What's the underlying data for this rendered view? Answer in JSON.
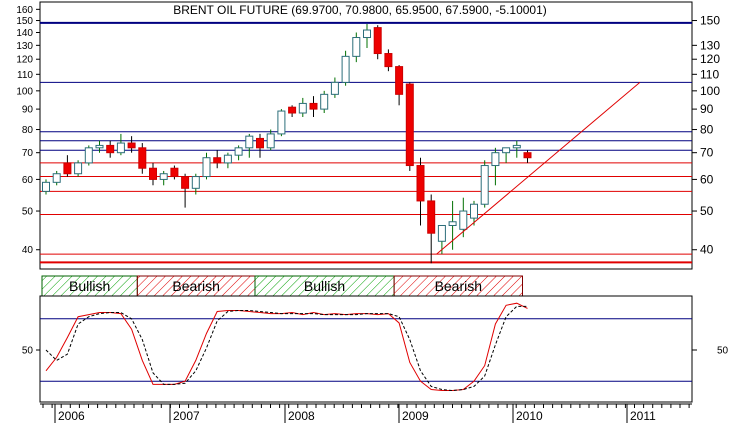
{
  "chart_data": [
    {
      "type": "candlestick",
      "title": "BRENT OIL FUTURE (69.9700, 70.9800, 65.9500, 67.5900, -5.10001)",
      "y_scale": "log",
      "ylim": [
        36,
        165
      ],
      "y_ticks_left": [
        40,
        50,
        60,
        70,
        80,
        90,
        100,
        110,
        120,
        130,
        140,
        150,
        160
      ],
      "y_ticks_right": [
        40,
        50,
        60,
        70,
        80,
        90,
        100,
        110,
        120,
        130,
        150
      ],
      "x_labels": [
        "2006",
        "2007",
        "2008",
        "2009",
        "2010",
        "2011"
      ],
      "candles": [
        {
          "o": 56,
          "h": 60,
          "l": 55,
          "c": 59
        },
        {
          "o": 59,
          "h": 63,
          "l": 58,
          "c": 62
        },
        {
          "o": 66,
          "h": 69,
          "l": 61,
          "c": 62
        },
        {
          "o": 62,
          "h": 67,
          "l": 61,
          "c": 66
        },
        {
          "o": 66,
          "h": 73,
          "l": 65,
          "c": 72
        },
        {
          "o": 72,
          "h": 75,
          "l": 70,
          "c": 73
        },
        {
          "o": 73,
          "h": 75,
          "l": 68,
          "c": 70
        },
        {
          "o": 70,
          "h": 78,
          "l": 69,
          "c": 74
        },
        {
          "o": 74,
          "h": 77,
          "l": 70,
          "c": 72
        },
        {
          "o": 72,
          "h": 74,
          "l": 62,
          "c": 64
        },
        {
          "o": 64,
          "h": 66,
          "l": 58,
          "c": 60
        },
        {
          "o": 60,
          "h": 63,
          "l": 58,
          "c": 62
        },
        {
          "o": 64,
          "h": 65,
          "l": 60,
          "c": 61
        },
        {
          "o": 61,
          "h": 62,
          "l": 51,
          "c": 57
        },
        {
          "o": 57,
          "h": 62,
          "l": 55,
          "c": 61
        },
        {
          "o": 61,
          "h": 70,
          "l": 60,
          "c": 68
        },
        {
          "o": 68,
          "h": 71,
          "l": 64,
          "c": 66
        },
        {
          "o": 66,
          "h": 70,
          "l": 64,
          "c": 69
        },
        {
          "o": 69,
          "h": 73,
          "l": 67,
          "c": 72
        },
        {
          "o": 72,
          "h": 78,
          "l": 68,
          "c": 77
        },
        {
          "o": 76,
          "h": 78,
          "l": 68,
          "c": 72
        },
        {
          "o": 72,
          "h": 80,
          "l": 71,
          "c": 78
        },
        {
          "o": 78,
          "h": 90,
          "l": 77,
          "c": 89
        },
        {
          "o": 91,
          "h": 92,
          "l": 86,
          "c": 88
        },
        {
          "o": 88,
          "h": 96,
          "l": 86,
          "c": 93
        },
        {
          "o": 93,
          "h": 97,
          "l": 86,
          "c": 90
        },
        {
          "o": 90,
          "h": 100,
          "l": 88,
          "c": 98
        },
        {
          "o": 98,
          "h": 108,
          "l": 96,
          "c": 105
        },
        {
          "o": 105,
          "h": 126,
          "l": 103,
          "c": 122
        },
        {
          "o": 122,
          "h": 140,
          "l": 118,
          "c": 136
        },
        {
          "o": 136,
          "h": 147,
          "l": 128,
          "c": 142
        },
        {
          "o": 144,
          "h": 146,
          "l": 120,
          "c": 124
        },
        {
          "o": 124,
          "h": 127,
          "l": 112,
          "c": 115
        },
        {
          "o": 115,
          "h": 116,
          "l": 92,
          "c": 98
        },
        {
          "o": 104,
          "h": 105,
          "l": 63,
          "c": 65
        },
        {
          "o": 65,
          "h": 68,
          "l": 46,
          "c": 53
        },
        {
          "o": 53,
          "h": 55,
          "l": 37,
          "c": 44
        },
        {
          "o": 42,
          "h": 46,
          "l": 39,
          "c": 46
        },
        {
          "o": 46,
          "h": 53,
          "l": 40,
          "c": 47
        },
        {
          "o": 45,
          "h": 54,
          "l": 43,
          "c": 50
        },
        {
          "o": 48,
          "h": 53,
          "l": 46,
          "c": 52
        },
        {
          "o": 52,
          "h": 67,
          "l": 51,
          "c": 65
        },
        {
          "o": 65,
          "h": 72,
          "l": 58,
          "c": 70
        },
        {
          "o": 70,
          "h": 72,
          "l": 66,
          "c": 72
        },
        {
          "o": 72,
          "h": 75,
          "l": 68,
          "c": 73
        },
        {
          "o": 70,
          "h": 71,
          "l": 66,
          "c": 68
        }
      ],
      "horizontal_levels": [
        {
          "value": 148,
          "color": "#000080"
        },
        {
          "value": 105,
          "color": "#000080"
        },
        {
          "value": 79,
          "color": "#000080"
        },
        {
          "value": 75,
          "color": "#000080"
        },
        {
          "value": 71,
          "color": "#000080"
        },
        {
          "value": 66,
          "color": "#e00000"
        },
        {
          "value": 61,
          "color": "#e00000"
        },
        {
          "value": 56,
          "color": "#e00000"
        },
        {
          "value": 49,
          "color": "#e00000"
        },
        {
          "value": 39,
          "color": "#e00000"
        },
        {
          "value": 37.2,
          "color": "#e00000"
        }
      ],
      "trendline": {
        "from": {
          "candle": 36.5,
          "value": 39
        },
        "to": {
          "candle": 55.5,
          "value": 105
        },
        "color": "#e00000"
      },
      "regimes": [
        {
          "label": "Bullish",
          "start": 0,
          "end": 9,
          "type": "bullish"
        },
        {
          "label": "Bearish",
          "start": 9,
          "end": 20,
          "type": "bearish"
        },
        {
          "label": "Bullish",
          "start": 20,
          "end": 33,
          "type": "bullish"
        },
        {
          "label": "Bearish",
          "start": 33,
          "end": 45,
          "type": "bearish"
        }
      ]
    },
    {
      "type": "line",
      "ylim": [
        0,
        100
      ],
      "y_ticks": [
        50
      ],
      "levels": [
        80,
        20
      ],
      "series": [
        {
          "color": "#e00000",
          "style": "solid",
          "values": [
            30,
            43,
            62,
            82,
            84,
            86,
            86,
            85,
            70,
            40,
            17,
            17,
            17,
            20,
            40,
            66,
            87,
            88,
            88,
            87,
            86,
            85,
            85,
            86,
            84,
            86,
            84,
            85,
            84,
            85,
            85,
            84,
            85,
            76,
            38,
            20,
            12,
            11,
            11,
            12,
            20,
            35,
            75,
            93,
            95,
            90
          ]
        },
        {
          "color": "#000000",
          "style": "dashed",
          "values": [
            50,
            40,
            46,
            75,
            82,
            85,
            86,
            86,
            80,
            60,
            28,
            17,
            17,
            18,
            30,
            52,
            78,
            87,
            88,
            88,
            87,
            86,
            85,
            85,
            85,
            85,
            84,
            84,
            84,
            84,
            85,
            85,
            85,
            82,
            60,
            30,
            15,
            12,
            11,
            12,
            15,
            25,
            55,
            82,
            92,
            92
          ]
        }
      ]
    }
  ]
}
